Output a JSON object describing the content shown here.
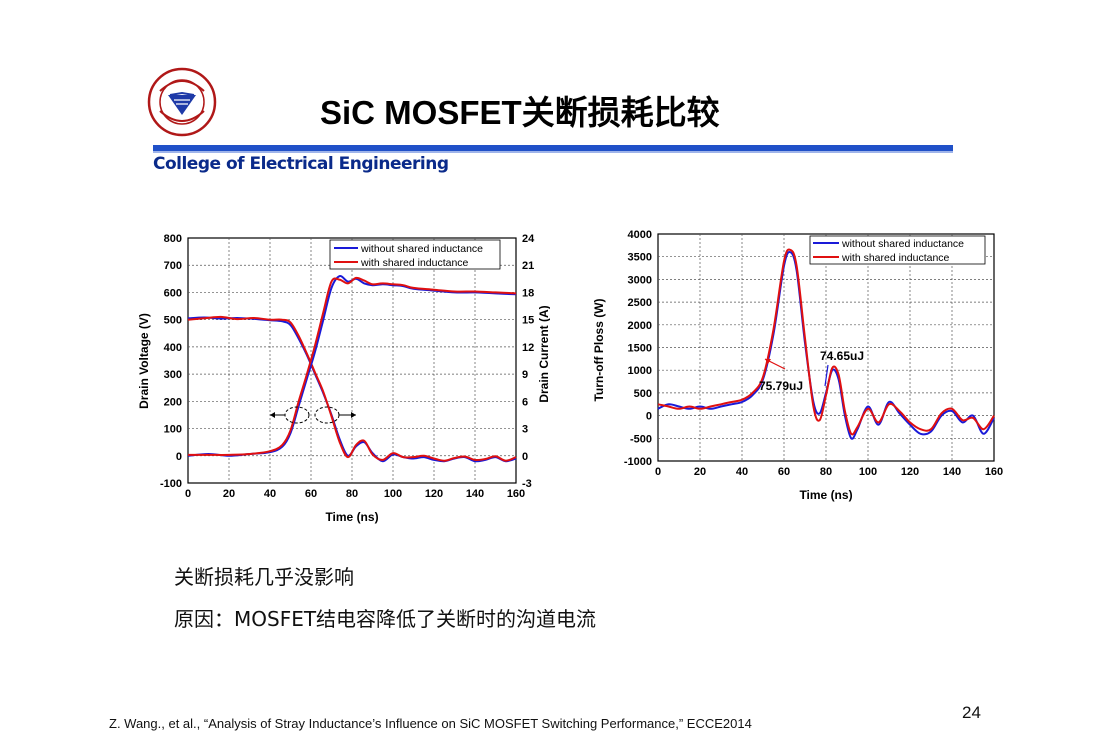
{
  "header": {
    "title": "SiC MOSFET关断损耗比较",
    "college": "College of Electrical Engineering",
    "logo_text": "浙江大学 ZHEJIANG UNIVERSITY 1897"
  },
  "bullets": [
    "关断损耗几乎没影响",
    "原因：MOSFET结电容降低了关断时的沟道电流"
  ],
  "footer": {
    "citation": "Z. Wang., et al., “Analysis of Stray Inductance’s Influence on SiC MOSFET Switching Performance,” ECCE2014",
    "page_number": "24"
  },
  "colors": {
    "blue": "#1a1ad8",
    "red": "#e01010",
    "band": "#2050c8",
    "college": "#0a2a8a"
  },
  "chart_data": [
    {
      "type": "line",
      "xlabel": "Time (ns)",
      "ylabel": "Drain Voltage (V)",
      "ylabel_right": "Drain Current (A)",
      "xlim": [
        0,
        160
      ],
      "ylim": [
        -100,
        800
      ],
      "ylim_right": [
        -3,
        24
      ],
      "xticks": [
        "0",
        "20",
        "40",
        "60",
        "80",
        "100",
        "120",
        "140",
        "160"
      ],
      "yticks": [
        "-100",
        "0",
        "100",
        "200",
        "300",
        "400",
        "500",
        "600",
        "700",
        "800"
      ],
      "yticks_right": [
        "-3",
        "0",
        "3",
        "6",
        "9",
        "12",
        "15",
        "18",
        "21",
        "24"
      ],
      "grid": true,
      "legend_position": "top-right",
      "series": [
        {
          "name": "without shared inductance",
          "color": "#1a1ad8",
          "quantity": "drain voltage",
          "x": [
            0,
            8,
            16,
            24,
            32,
            40,
            46,
            50,
            54,
            58,
            62,
            66,
            70,
            74,
            78,
            82,
            86,
            90,
            95,
            100,
            105,
            110,
            115,
            120,
            125,
            130,
            135,
            140,
            145,
            150,
            155,
            160
          ],
          "y": [
            505,
            508,
            504,
            506,
            503,
            498,
            494,
            480,
            430,
            370,
            300,
            230,
            150,
            60,
            0,
            35,
            50,
            10,
            -20,
            5,
            -5,
            -10,
            -5,
            -15,
            -20,
            -10,
            -5,
            -20,
            -15,
            -5,
            -20,
            -10
          ]
        },
        {
          "name": "with shared inductance",
          "color": "#e01010",
          "quantity": "drain voltage",
          "x": [
            0,
            8,
            16,
            24,
            32,
            40,
            46,
            50,
            54,
            58,
            62,
            66,
            70,
            74,
            78,
            82,
            86,
            90,
            95,
            100,
            105,
            110,
            115,
            120,
            125,
            130,
            135,
            140,
            145,
            150,
            155,
            160
          ],
          "y": [
            500,
            505,
            510,
            502,
            506,
            500,
            500,
            490,
            440,
            375,
            305,
            235,
            145,
            50,
            -5,
            40,
            55,
            5,
            -15,
            10,
            -5,
            -5,
            0,
            -10,
            -18,
            -8,
            -3,
            -15,
            -12,
            -2,
            -18,
            -5
          ]
        },
        {
          "name": "without shared inductance",
          "color": "#1a1ad8",
          "quantity": "drain current",
          "x": [
            0,
            10,
            20,
            30,
            40,
            46,
            50,
            54,
            58,
            62,
            66,
            70,
            74,
            78,
            82,
            86,
            90,
            95,
            100,
            105,
            110,
            120,
            130,
            140,
            150,
            160
          ],
          "y": [
            0,
            0.2,
            0,
            0.2,
            0.4,
            1,
            2.5,
            5.5,
            8.5,
            11.5,
            15,
            18.5,
            19.8,
            19.2,
            19.5,
            19.0,
            18.8,
            18.9,
            18.8,
            18.7,
            18.4,
            18.2,
            18.0,
            18.0,
            17.9,
            17.8
          ]
        },
        {
          "name": "with shared inductance",
          "color": "#e01010",
          "quantity": "drain current",
          "x": [
            0,
            10,
            20,
            30,
            40,
            46,
            50,
            54,
            58,
            62,
            66,
            70,
            74,
            78,
            82,
            86,
            90,
            95,
            100,
            105,
            110,
            120,
            130,
            140,
            150,
            160
          ],
          "y": [
            0.1,
            0.1,
            0.1,
            0.2,
            0.5,
            1.2,
            2.8,
            6,
            9,
            12.2,
            15.8,
            19.2,
            19.4,
            19.0,
            19.6,
            19.3,
            18.9,
            19.0,
            18.9,
            18.8,
            18.5,
            18.3,
            18.1,
            18.1,
            18.0,
            17.9
          ]
        }
      ]
    },
    {
      "type": "line",
      "xlabel": "Time (ns)",
      "ylabel": "Turn-off Ploss (W)",
      "xlim": [
        0,
        160
      ],
      "ylim": [
        -1000,
        4000
      ],
      "xticks": [
        "0",
        "20",
        "40",
        "60",
        "80",
        "100",
        "120",
        "140",
        "160"
      ],
      "yticks": [
        "-1000",
        "-500",
        "0",
        "500",
        "1000",
        "1500",
        "2000",
        "2500",
        "3000",
        "3500",
        "4000"
      ],
      "grid": true,
      "legend_position": "top-right",
      "annotations": [
        "74.65uJ",
        "75.79uJ"
      ],
      "series": [
        {
          "name": "without shared inductance",
          "color": "#1a1ad8",
          "x": [
            0,
            5,
            10,
            15,
            20,
            25,
            30,
            35,
            40,
            45,
            50,
            55,
            60,
            63,
            66,
            70,
            74,
            77,
            80,
            83,
            86,
            89,
            92,
            95,
            100,
            105,
            110,
            115,
            120,
            125,
            130,
            135,
            140,
            145,
            150,
            155,
            160
          ],
          "y": [
            150,
            250,
            200,
            150,
            200,
            150,
            200,
            250,
            300,
            450,
            800,
            1800,
            3300,
            3600,
            3200,
            1600,
            300,
            50,
            500,
            1000,
            800,
            0,
            -500,
            -300,
            200,
            -200,
            300,
            50,
            -200,
            -400,
            -350,
            0,
            100,
            -150,
            0,
            -400,
            -50
          ]
        },
        {
          "name": "with shared inductance",
          "color": "#e01010",
          "x": [
            0,
            5,
            10,
            15,
            20,
            25,
            30,
            35,
            40,
            45,
            50,
            55,
            60,
            63,
            66,
            70,
            74,
            77,
            80,
            83,
            86,
            89,
            92,
            95,
            100,
            105,
            110,
            115,
            120,
            125,
            130,
            135,
            140,
            145,
            150,
            155,
            160
          ],
          "y": [
            250,
            200,
            150,
            200,
            150,
            200,
            250,
            300,
            350,
            500,
            850,
            1900,
            3400,
            3650,
            3300,
            1700,
            200,
            -100,
            450,
            1050,
            900,
            100,
            -400,
            -250,
            150,
            -150,
            250,
            100,
            -150,
            -300,
            -300,
            50,
            150,
            -100,
            -50,
            -300,
            0
          ]
        }
      ]
    }
  ]
}
